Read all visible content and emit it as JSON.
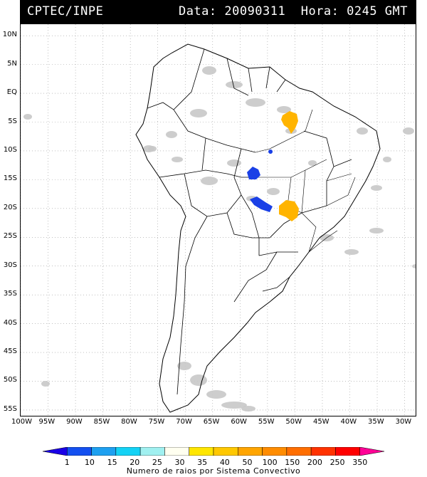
{
  "header": {
    "title_left": "CPTEC/INPE",
    "title_right": "Data: 20090311  Hora: 0245 GMT"
  },
  "map": {
    "lat_labels": [
      "10N",
      "5N",
      "EQ",
      "5S",
      "10S",
      "15S",
      "20S",
      "25S",
      "30S",
      "35S",
      "40S",
      "45S",
      "50S",
      "55S"
    ],
    "lon_labels": [
      "100W",
      "95W",
      "90W",
      "85W",
      "80W",
      "75W",
      "70W",
      "65W",
      "60W",
      "55W",
      "50W",
      "45W",
      "40W",
      "35W",
      "30W"
    ],
    "lat_range": [
      -56,
      12
    ],
    "lon_range": [
      -100,
      -28
    ],
    "grid": "dotted"
  },
  "legend": {
    "labels": [
      "1",
      "10",
      "15",
      "20",
      "25",
      "30",
      "35",
      "40",
      "50",
      "100",
      "150",
      "200",
      "250",
      "350"
    ],
    "colors": [
      "#1a00e6",
      "#1450f0",
      "#1ea0f0",
      "#14d2f5",
      "#a0f0f0",
      "#fffff0",
      "#ffe600",
      "#ffc800",
      "#ffa500",
      "#ff8c00",
      "#ff6e00",
      "#ff3200",
      "#ff0000",
      "#ff0096"
    ],
    "caption": "Numero de raios por Sistema Convectivo"
  },
  "colors": {
    "convective_gray": "#c8c8c8",
    "storm_blue": "#1a40e6",
    "storm_orange": "#ffb400",
    "coastline": "#000000"
  }
}
